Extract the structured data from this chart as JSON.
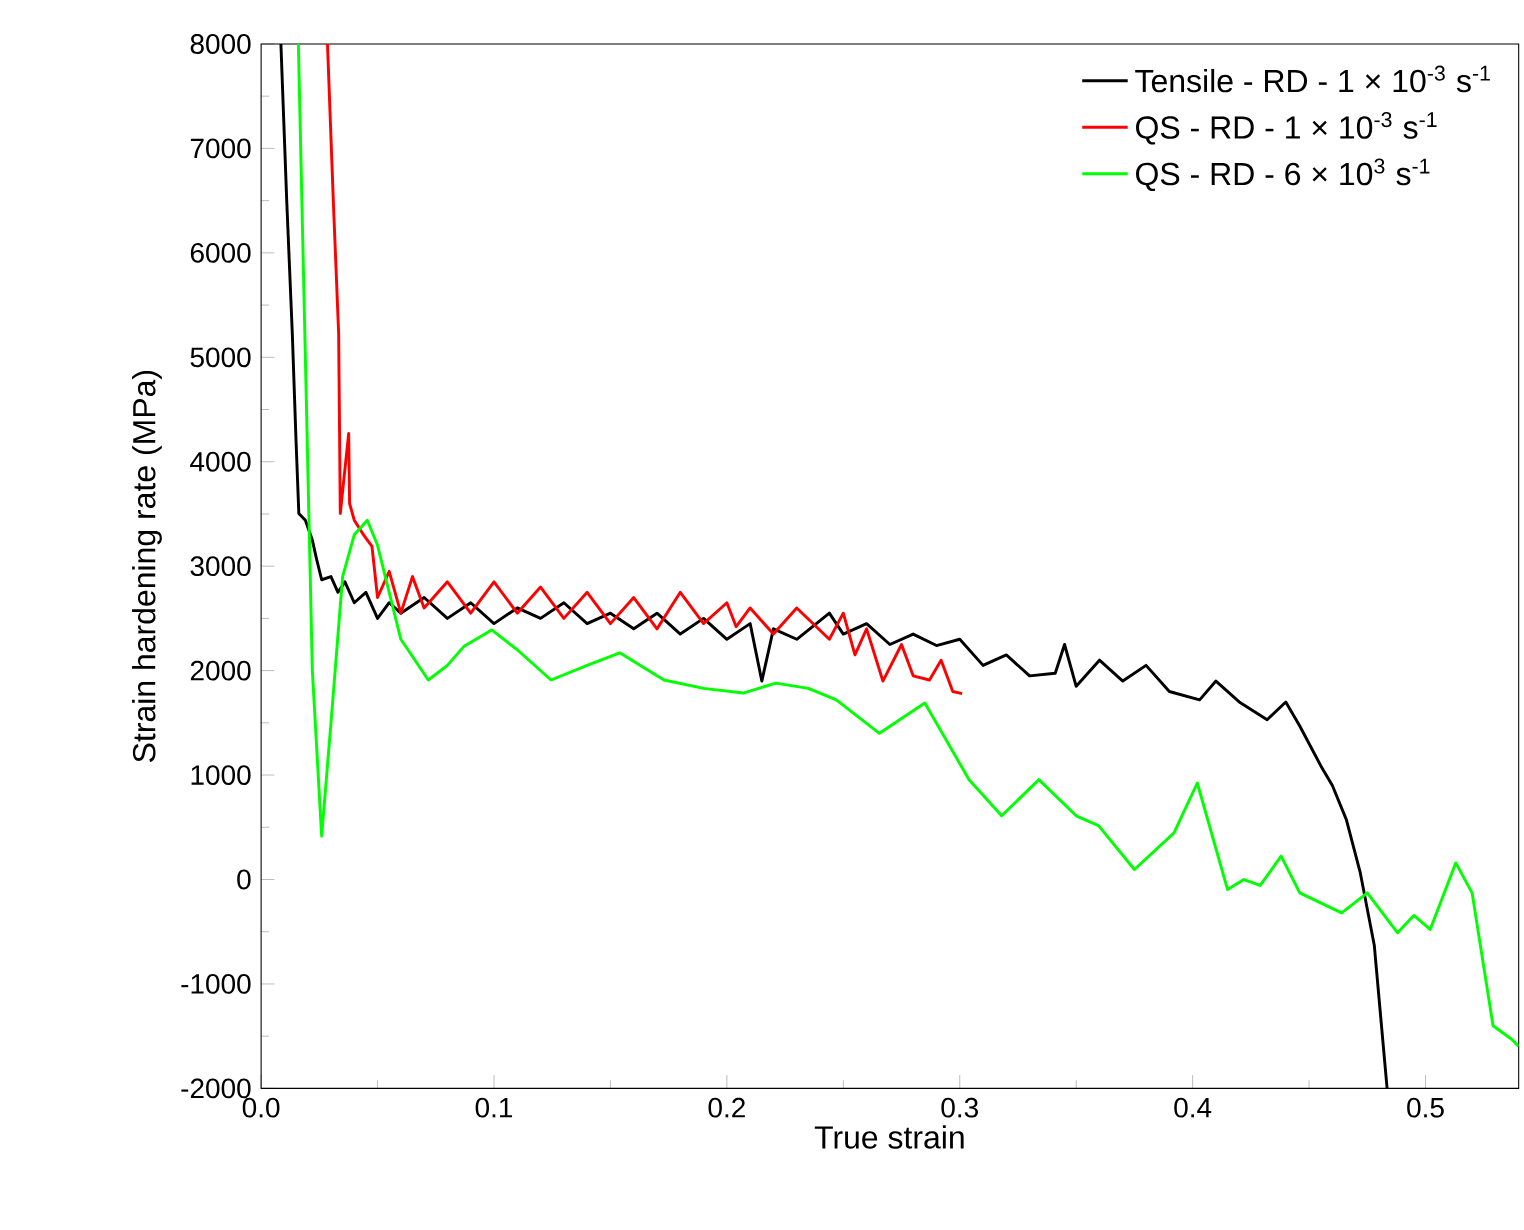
{
  "chart_data": {
    "type": "line",
    "xlabel": "True strain",
    "ylabel": "Strain hardening rate (MPa)",
    "xlim": [
      0,
      0.54
    ],
    "ylim": [
      -2000,
      8000
    ],
    "xticks": [
      {
        "value": 0,
        "label": "0.0"
      },
      0.1,
      0.2,
      0.3,
      0.4,
      0.5
    ],
    "yticks": [
      -2000,
      -1000,
      0,
      1000,
      2000,
      3000,
      4000,
      5000,
      6000,
      7000,
      8000
    ],
    "grid": false,
    "legend": "top right",
    "marker": "none",
    "line_style": "solid",
    "series": [
      {
        "name": "Tensile - RD - 1 × 10$^{-3}$ s$^{-1}$",
        "color": "#000000",
        "x": [
          0.0085,
          0.011,
          0.0134,
          0.015,
          0.0162,
          0.019,
          0.022,
          0.024,
          0.026,
          0.03,
          0.033,
          0.036,
          0.04,
          0.045,
          0.05,
          0.055,
          0.06,
          0.07,
          0.08,
          0.09,
          0.1,
          0.11,
          0.12,
          0.13,
          0.14,
          0.15,
          0.16,
          0.17,
          0.18,
          0.19,
          0.2,
          0.21,
          0.215,
          0.22,
          0.23,
          0.244,
          0.25,
          0.26,
          0.27,
          0.28,
          0.29,
          0.3,
          0.31,
          0.32,
          0.33,
          0.341,
          0.345,
          0.35,
          0.36,
          0.37,
          0.38,
          0.39,
          0.403,
          0.41,
          0.42,
          0.432,
          0.44,
          0.446,
          0.455,
          0.46,
          0.466,
          0.472,
          0.478,
          0.4835
        ],
        "values": [
          8000,
          6500,
          5225,
          4200,
          3505,
          3440,
          3250,
          3050,
          2870,
          2900,
          2750,
          2850,
          2650,
          2750,
          2500,
          2650,
          2550,
          2700,
          2500,
          2650,
          2450,
          2600,
          2500,
          2650,
          2450,
          2550,
          2400,
          2550,
          2350,
          2500,
          2300,
          2450,
          1900,
          2400,
          2300,
          2550,
          2350,
          2450,
          2250,
          2350,
          2240,
          2300,
          2050,
          2150,
          1950,
          1975,
          2250,
          1850,
          2100,
          1900,
          2050,
          1800,
          1720,
          1900,
          1700,
          1530,
          1700,
          1470,
          1090,
          900,
          573,
          63,
          -630,
          -2000
        ]
      },
      {
        "name": "QS - RD - 1 × 10$^{-3}$ s$^{-1}$",
        "color": "#ff0000",
        "x": [
          0.0285,
          0.031,
          0.0333,
          0.034,
          0.0376,
          0.038,
          0.04,
          0.044,
          0.0476,
          0.05,
          0.055,
          0.06,
          0.065,
          0.07,
          0.08,
          0.09,
          0.1,
          0.11,
          0.12,
          0.13,
          0.14,
          0.15,
          0.16,
          0.17,
          0.18,
          0.19,
          0.2,
          0.204,
          0.21,
          0.22,
          0.23,
          0.244,
          0.25,
          0.255,
          0.26,
          0.267,
          0.275,
          0.28,
          0.287,
          0.292,
          0.297,
          0.301
        ],
        "values": [
          8000,
          6500,
          5225,
          3505,
          4270,
          3600,
          3440,
          3300,
          3190,
          2700,
          2950,
          2550,
          2900,
          2600,
          2850,
          2550,
          2850,
          2550,
          2800,
          2500,
          2750,
          2450,
          2700,
          2400,
          2750,
          2450,
          2650,
          2420,
          2600,
          2350,
          2600,
          2300,
          2550,
          2150,
          2400,
          1900,
          2250,
          1950,
          1910,
          2100,
          1800,
          1780
        ]
      },
      {
        "name": "QS - RD - 6 × 10$^{3}$ s$^{-1}$",
        "color": "#00ff00",
        "x": [
          0.016,
          0.019,
          0.022,
          0.026,
          0.03,
          0.035,
          0.04,
          0.0456,
          0.05,
          0.06,
          0.0718,
          0.08,
          0.087,
          0.099,
          0.11,
          0.1245,
          0.14,
          0.154,
          0.173,
          0.19,
          0.207,
          0.221,
          0.235,
          0.247,
          0.2655,
          0.285,
          0.304,
          0.318,
          0.334,
          0.35,
          0.3596,
          0.375,
          0.392,
          0.402,
          0.415,
          0.422,
          0.429,
          0.438,
          0.446,
          0.464,
          0.475,
          0.488,
          0.495,
          0.502,
          0.513,
          0.52,
          0.529,
          0.537,
          0.54
        ],
        "values": [
          8000,
          5000,
          2000,
          415,
          1500,
          2900,
          3300,
          3440,
          3200,
          2300,
          1910,
          2050,
          2230,
          2390,
          2200,
          1910,
          2050,
          2170,
          1910,
          1830,
          1785,
          1880,
          1830,
          1720,
          1400,
          1690,
          956,
          610,
          956,
          610,
          516,
          96,
          446,
          924,
          -96,
          0,
          -57,
          224,
          -128,
          -319,
          -128,
          -510,
          -344,
          -478,
          159,
          -128,
          -1400,
          -1530,
          -1600
        ]
      }
    ]
  }
}
